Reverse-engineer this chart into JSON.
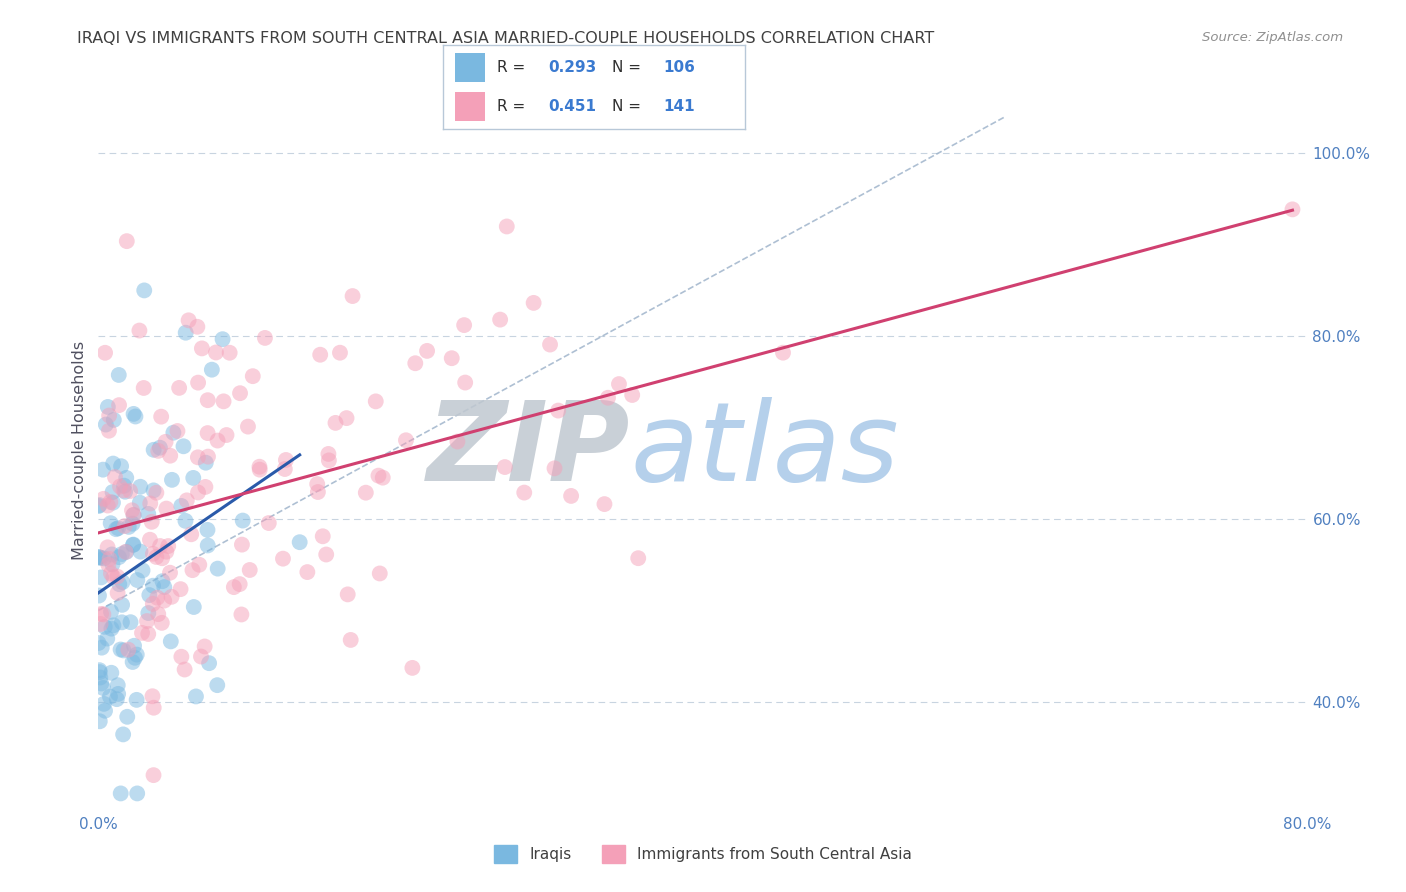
{
  "title": "IRAQI VS IMMIGRANTS FROM SOUTH CENTRAL ASIA MARRIED-COUPLE HOUSEHOLDS CORRELATION CHART",
  "source": "Source: ZipAtlas.com",
  "ylabel": "Married-couple Households",
  "xlim": [
    0.0,
    80.0
  ],
  "ylim": [
    28.0,
    107.0
  ],
  "yticks": [
    40.0,
    60.0,
    80.0,
    100.0
  ],
  "ytick_labels": [
    "40.0%",
    "60.0%",
    "80.0%",
    "100.0%"
  ],
  "xtick_positions": [
    0.0,
    20.0,
    40.0,
    60.0,
    80.0
  ],
  "xtick_labels": [
    "0.0%",
    "",
    "",
    "",
    "80.0%"
  ],
  "blue_color": "#7ab8e0",
  "pink_color": "#f4a0b8",
  "trend_blue": "#2a5aaa",
  "trend_pink": "#d04070",
  "trend_gray_dashed_color": "#9ab0c8",
  "watermark_ZIP_color": "#c0c8d0",
  "watermark_atlas_color": "#a8c8e8",
  "background_color": "#ffffff",
  "grid_color": "#c8d4e0",
  "title_color": "#404040",
  "source_color": "#909090",
  "axis_tick_color": "#5080c0",
  "ylabel_color": "#505060",
  "R_blue": 0.293,
  "N_blue": 106,
  "R_pink": 0.451,
  "N_pink": 141,
  "legend_R_N_color": "#3a7ad0",
  "legend_label_color": "#303030",
  "bottom_legend_color": "#404040"
}
